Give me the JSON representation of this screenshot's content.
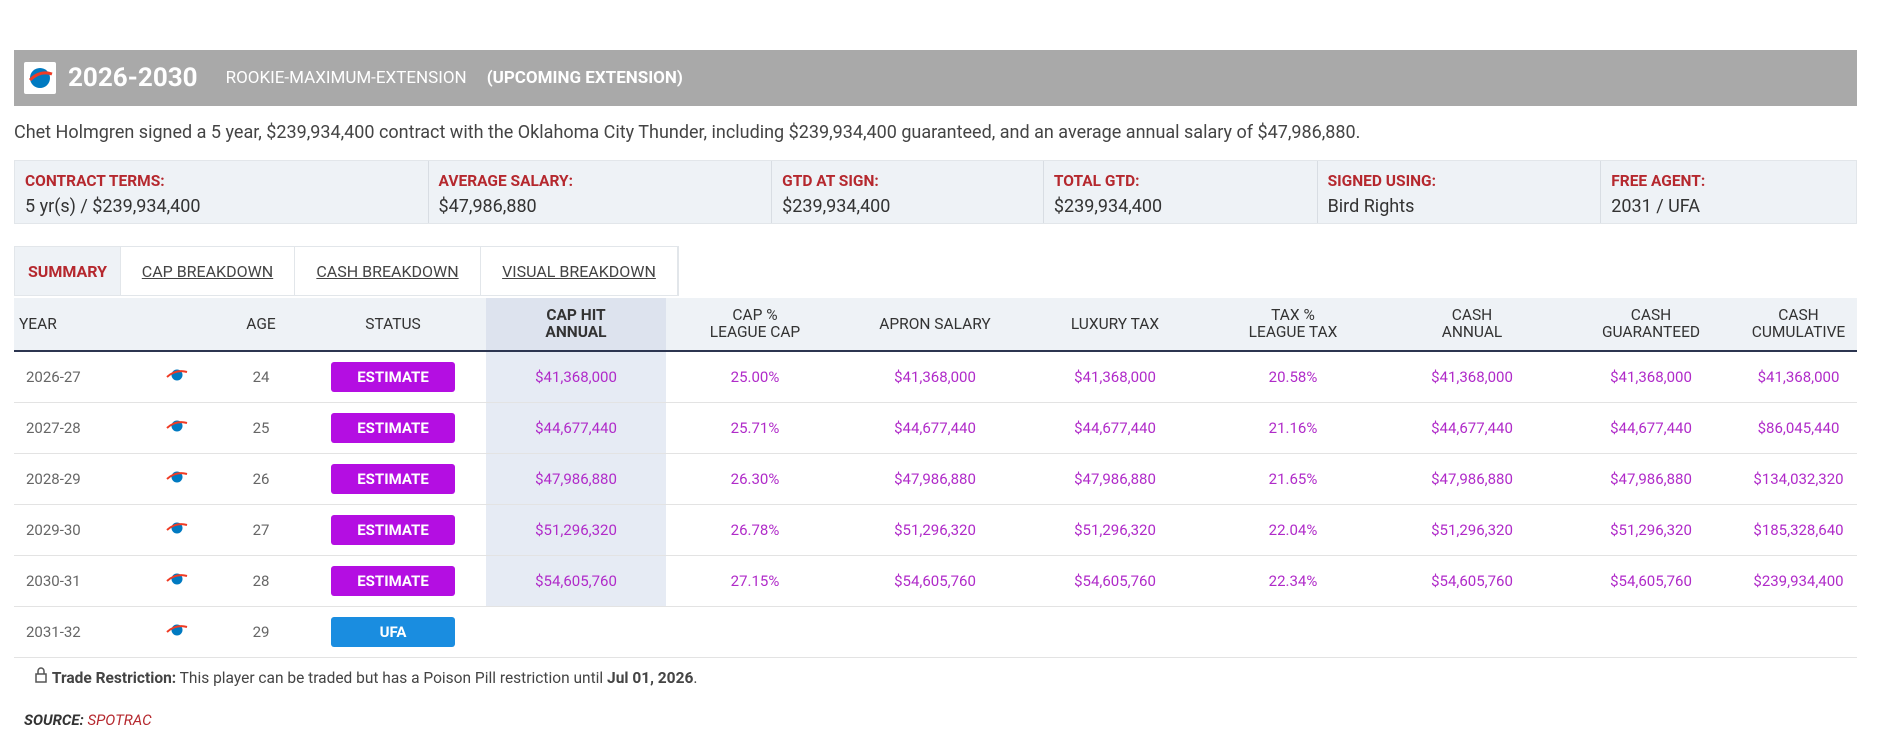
{
  "header": {
    "years": "2026-2030",
    "type": "ROOKIE-MAXIMUM-EXTENSION",
    "note": "(UPCOMING EXTENSION)"
  },
  "description": "Chet Holmgren signed a 5 year, $239,934,400 contract with the Oklahoma City Thunder, including $239,934,400 guaranteed, and an average annual salary of $47,986,880.",
  "terms": [
    {
      "label": "CONTRACT TERMS:",
      "value": "5 yr(s) / $239,934,400"
    },
    {
      "label": "AVERAGE SALARY:",
      "value": "$47,986,880"
    },
    {
      "label": "GTD AT SIGN:",
      "value": "$239,934,400"
    },
    {
      "label": "TOTAL GTD:",
      "value": "$239,934,400"
    },
    {
      "label": "SIGNED USING:",
      "value": "Bird Rights"
    },
    {
      "label": "FREE AGENT:",
      "value": "2031 / UFA"
    }
  ],
  "tabs": [
    "SUMMARY",
    "CAP BREAKDOWN",
    "CASH BREAKDOWN",
    "VISUAL BREAKDOWN"
  ],
  "table": {
    "columns": [
      {
        "lines": [
          "YEAR"
        ]
      },
      {
        "lines": [
          "AGE"
        ]
      },
      {
        "lines": [
          "STATUS"
        ]
      },
      {
        "lines": [
          "CAP HIT",
          "ANNUAL"
        ],
        "highlight": true
      },
      {
        "lines": [
          "CAP %",
          "LEAGUE CAP"
        ]
      },
      {
        "lines": [
          "APRON SALARY"
        ]
      },
      {
        "lines": [
          "LUXURY TAX"
        ]
      },
      {
        "lines": [
          "TAX %",
          "LEAGUE TAX"
        ]
      },
      {
        "lines": [
          "CASH",
          "ANNUAL"
        ]
      },
      {
        "lines": [
          "CASH",
          "GUARANTEED"
        ]
      },
      {
        "lines": [
          "CASH",
          "CUMULATIVE"
        ]
      }
    ],
    "rows": [
      {
        "year": "2026-27",
        "age": 24,
        "status": "ESTIMATE",
        "status_color": "#b40ee2",
        "values": [
          "$41,368,000",
          "25.00%",
          "$41,368,000",
          "$41,368,000",
          "20.58%",
          "$41,368,000",
          "$41,368,000",
          "$41,368,000"
        ]
      },
      {
        "year": "2027-28",
        "age": 25,
        "status": "ESTIMATE",
        "status_color": "#b40ee2",
        "values": [
          "$44,677,440",
          "25.71%",
          "$44,677,440",
          "$44,677,440",
          "21.16%",
          "$44,677,440",
          "$44,677,440",
          "$86,045,440"
        ]
      },
      {
        "year": "2028-29",
        "age": 26,
        "status": "ESTIMATE",
        "status_color": "#b40ee2",
        "values": [
          "$47,986,880",
          "26.30%",
          "$47,986,880",
          "$47,986,880",
          "21.65%",
          "$47,986,880",
          "$47,986,880",
          "$134,032,320"
        ]
      },
      {
        "year": "2029-30",
        "age": 27,
        "status": "ESTIMATE",
        "status_color": "#b40ee2",
        "values": [
          "$51,296,320",
          "26.78%",
          "$51,296,320",
          "$51,296,320",
          "22.04%",
          "$51,296,320",
          "$51,296,320",
          "$185,328,640"
        ]
      },
      {
        "year": "2030-31",
        "age": 28,
        "status": "ESTIMATE",
        "status_color": "#b40ee2",
        "values": [
          "$54,605,760",
          "27.15%",
          "$54,605,760",
          "$54,605,760",
          "22.34%",
          "$54,605,760",
          "$54,605,760",
          "$239,934,400"
        ]
      },
      {
        "year": "2031-32",
        "age": 29,
        "status": "UFA",
        "status_color": "#1a8de0"
      }
    ]
  },
  "footnote": {
    "label": "Trade Restriction:",
    "text": " This player can be traded but has a Poison Pill restriction until ",
    "date": "Jul 01, 2026",
    "end": "."
  },
  "source": {
    "label": "SOURCE:",
    "name": "SPOTRAC"
  }
}
